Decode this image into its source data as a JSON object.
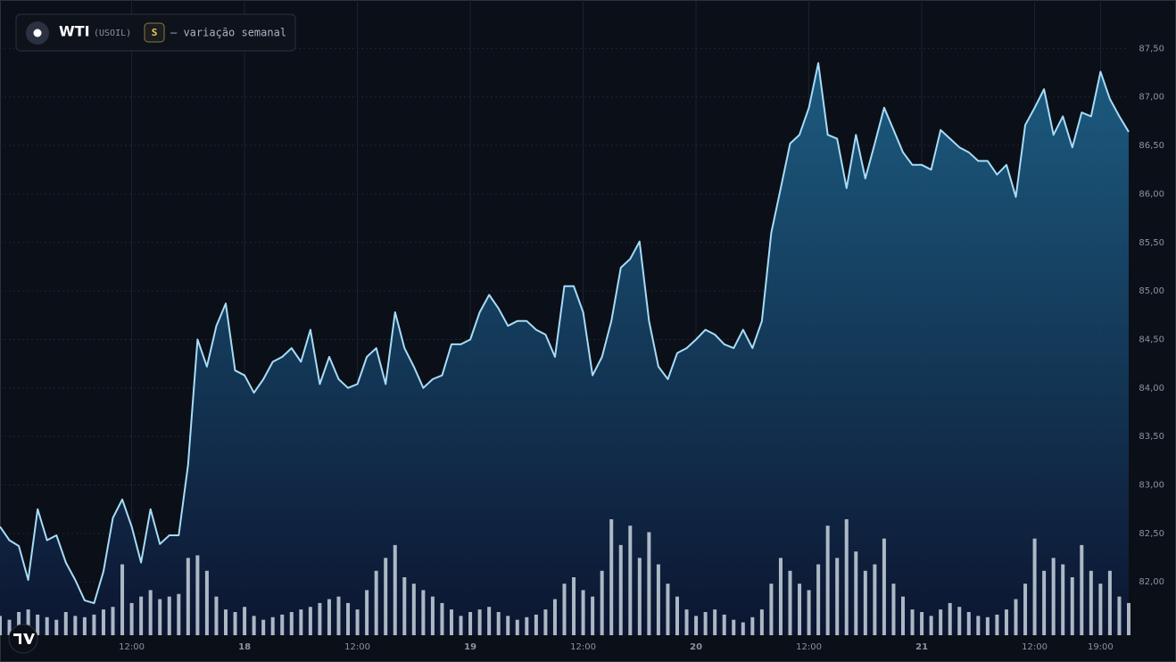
{
  "chart_data": {
    "type": "area",
    "symbol": "WTI",
    "ticker": "(USOIL)",
    "badge": "S",
    "subtitle": "— variação semanal",
    "x": [
      -2,
      -1,
      0,
      1,
      2,
      3,
      4,
      5,
      6,
      7,
      8,
      9,
      10,
      11,
      12,
      13,
      14,
      15,
      16,
      17,
      18,
      19,
      20,
      21,
      22,
      23,
      24,
      25,
      26,
      27,
      28,
      29,
      30,
      31,
      32,
      33,
      34,
      35,
      36,
      37,
      38,
      39,
      40,
      41,
      42,
      43,
      44,
      45,
      46,
      47,
      48,
      49,
      50,
      51,
      52,
      53,
      54,
      55,
      56,
      57,
      58,
      59,
      60,
      61,
      62,
      63,
      64,
      65,
      66,
      67,
      68,
      69,
      70,
      71,
      72,
      73,
      74,
      75,
      76,
      77,
      78,
      79,
      80,
      81,
      82,
      83,
      84,
      85,
      86,
      87,
      88,
      89,
      90,
      91,
      92,
      93,
      94,
      95,
      96,
      97,
      98,
      99,
      100,
      101,
      102,
      103,
      104,
      105,
      106,
      107,
      108,
      109,
      110,
      111,
      112,
      113,
      114,
      115,
      116,
      117,
      118
    ],
    "values": [
      82.57,
      82.43,
      82.37,
      82.02,
      82.75,
      82.43,
      82.48,
      82.2,
      82.02,
      81.81,
      81.78,
      82.11,
      82.66,
      82.85,
      82.57,
      82.2,
      82.75,
      82.39,
      82.48,
      82.48,
      83.21,
      84.5,
      84.22,
      84.64,
      84.87,
      84.18,
      84.13,
      83.95,
      84.09,
      84.27,
      84.32,
      84.41,
      84.27,
      84.6,
      84.04,
      84.32,
      84.09,
      84.0,
      84.04,
      84.32,
      84.41,
      84.04,
      84.78,
      84.41,
      84.22,
      84.0,
      84.09,
      84.13,
      84.45,
      84.45,
      84.5,
      84.78,
      84.96,
      84.82,
      84.64,
      84.69,
      84.69,
      84.6,
      84.55,
      84.32,
      85.05,
      85.05,
      84.78,
      84.13,
      84.32,
      84.69,
      85.24,
      85.33,
      85.51,
      84.69,
      84.22,
      84.09,
      84.36,
      84.41,
      84.5,
      84.6,
      84.55,
      84.45,
      84.41,
      84.6,
      84.41,
      84.69,
      85.6,
      86.06,
      86.52,
      86.61,
      86.89,
      87.35,
      86.61,
      86.57,
      86.06,
      86.61,
      86.16,
      86.52,
      86.89,
      86.66,
      86.43,
      86.3,
      86.3,
      86.25,
      86.66,
      86.57,
      86.48,
      86.43,
      86.34,
      86.34,
      86.2,
      86.3,
      85.97,
      86.71,
      86.89,
      87.08,
      86.61,
      86.8,
      86.48,
      86.84,
      86.8,
      87.26,
      86.98,
      86.8,
      86.64
    ],
    "volume": [
      15,
      12,
      18,
      20,
      16,
      14,
      12,
      18,
      15,
      14,
      16,
      20,
      22,
      55,
      25,
      30,
      35,
      28,
      30,
      32,
      60,
      62,
      50,
      30,
      20,
      18,
      22,
      15,
      12,
      14,
      16,
      18,
      20,
      22,
      25,
      28,
      30,
      25,
      20,
      35,
      50,
      60,
      70,
      45,
      40,
      35,
      30,
      25,
      20,
      15,
      18,
      20,
      22,
      18,
      15,
      12,
      14,
      16,
      20,
      28,
      40,
      45,
      35,
      30,
      50,
      90,
      70,
      85,
      60,
      80,
      55,
      40,
      30,
      20,
      15,
      18,
      20,
      16,
      12,
      10,
      14,
      20,
      40,
      60,
      50,
      40,
      35,
      55,
      85,
      60,
      90,
      65,
      50,
      55,
      75,
      40,
      30,
      20,
      18,
      15,
      20,
      25,
      22,
      18,
      15,
      14,
      16,
      20,
      28,
      40,
      75,
      50,
      60,
      55,
      45,
      70,
      50,
      40,
      50,
      30,
      25
    ],
    "color": "#a6dcf7",
    "volume_color": "#c9d3df",
    "xlim": [
      -2,
      118
    ],
    "xticks": [
      {
        "value": 12,
        "label": "12:00"
      },
      {
        "value": 24,
        "label": "18"
      },
      {
        "value": 36,
        "label": "12:00"
      },
      {
        "value": 48,
        "label": "19"
      },
      {
        "value": 60,
        "label": "12:00"
      },
      {
        "value": 72,
        "label": "20"
      },
      {
        "value": 84,
        "label": "12:00"
      },
      {
        "value": 96,
        "label": "21"
      },
      {
        "value": 108,
        "label": "12:00"
      },
      {
        "value": 115,
        "label": "19:00"
      }
    ],
    "ylim": [
      81.45,
      88.0
    ],
    "yticks": [
      {
        "value": 82,
        "label": "82,00"
      },
      {
        "value": 82.5,
        "label": "82,50"
      },
      {
        "value": 83,
        "label": "83,00"
      },
      {
        "value": 83.5,
        "label": "83,50"
      },
      {
        "value": 84,
        "label": "84,00"
      },
      {
        "value": 84.5,
        "label": "84,50"
      },
      {
        "value": 85,
        "label": "85,00"
      },
      {
        "value": 85.5,
        "label": "85,50"
      },
      {
        "value": 86,
        "label": "86,00"
      },
      {
        "value": 86.5,
        "label": "86,50"
      },
      {
        "value": 87,
        "label": "87,00"
      },
      {
        "value": 87.5,
        "label": "87,50"
      }
    ],
    "grid": true
  }
}
